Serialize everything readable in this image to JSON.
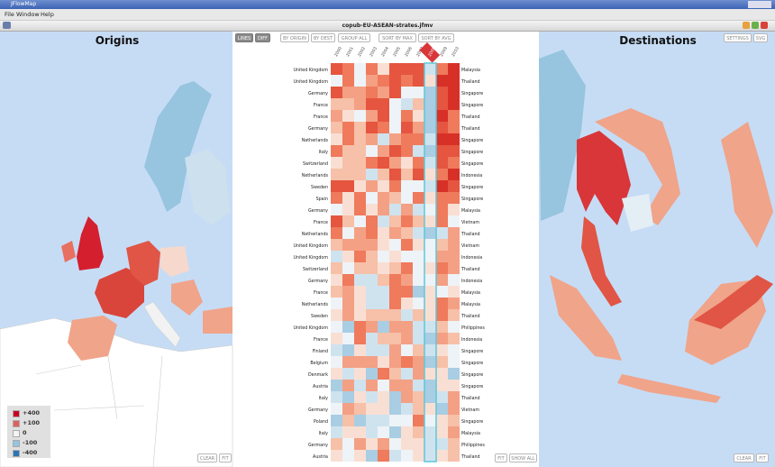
{
  "window": {
    "app_title": "JFlowMap",
    "menu": [
      "File",
      "Window",
      "Help"
    ],
    "title": "copub-EU-ASEAN-strates.jfmv"
  },
  "origins": {
    "title": "Origins",
    "buttons": [
      "LINES",
      "DIFF"
    ],
    "bottom_buttons": [
      "CLEAR",
      "FIT"
    ],
    "legend": [
      "+400",
      "+100",
      "0",
      "-100",
      "-400"
    ]
  },
  "heatmap": {
    "buttons": [
      "BY ORIGIN",
      "BY DEST",
      "GROUP ALL",
      "SORT BY MAX",
      "SORT BY AVG"
    ],
    "years": [
      "2000",
      "2001",
      "2002",
      "2003",
      "2004",
      "2005",
      "2006",
      "2007",
      "2008",
      "2009",
      "2010"
    ],
    "rows": [
      [
        "United Kingdom",
        "Malaysia"
      ],
      [
        "United Kingdom",
        "Thailand"
      ],
      [
        "Germany",
        "Singapore"
      ],
      [
        "France",
        "Singapore"
      ],
      [
        "France",
        "Thailand"
      ],
      [
        "Germany",
        "Thailand"
      ],
      [
        "Netherlands",
        "Singapore"
      ],
      [
        "Italy",
        "Singapore"
      ],
      [
        "Switzerland",
        "Singapore"
      ],
      [
        "Netherlands",
        "Indonesia"
      ],
      [
        "Sweden",
        "Singapore"
      ],
      [
        "Spain",
        "Singapore"
      ],
      [
        "Germany",
        "Malaysia"
      ],
      [
        "France",
        "Vietnam"
      ],
      [
        "Netherlands",
        "Thailand"
      ],
      [
        "United Kingdom",
        "Vietnam"
      ],
      [
        "United Kingdom",
        "Indonesia"
      ],
      [
        "Switzerland",
        "Thailand"
      ],
      [
        "Germany",
        "Indonesia"
      ],
      [
        "France",
        "Malaysia"
      ],
      [
        "Netherlands",
        "Malaysia"
      ],
      [
        "Sweden",
        "Thailand"
      ],
      [
        "United Kingdom",
        "Philippines"
      ],
      [
        "France",
        "Indonesia"
      ],
      [
        "Finland",
        "Singapore"
      ],
      [
        "Belgium",
        "Singapore"
      ],
      [
        "Denmark",
        "Singapore"
      ],
      [
        "Austria",
        "Singapore"
      ],
      [
        "Italy",
        "Thailand"
      ],
      [
        "Germany",
        "Vietnam"
      ],
      [
        "Poland",
        "Singapore"
      ],
      [
        "Italy",
        "Malaysia"
      ],
      [
        "Germany",
        "Philippines"
      ],
      [
        "Austria",
        "Thailand"
      ]
    ],
    "bottom_buttons": [
      "FIT",
      "SHOW ALL"
    ]
  },
  "destinations": {
    "title": "Destinations",
    "buttons": [
      "SETTINGS",
      "SVG"
    ],
    "bottom_buttons": [
      "CLEAR",
      "FIT"
    ]
  }
}
